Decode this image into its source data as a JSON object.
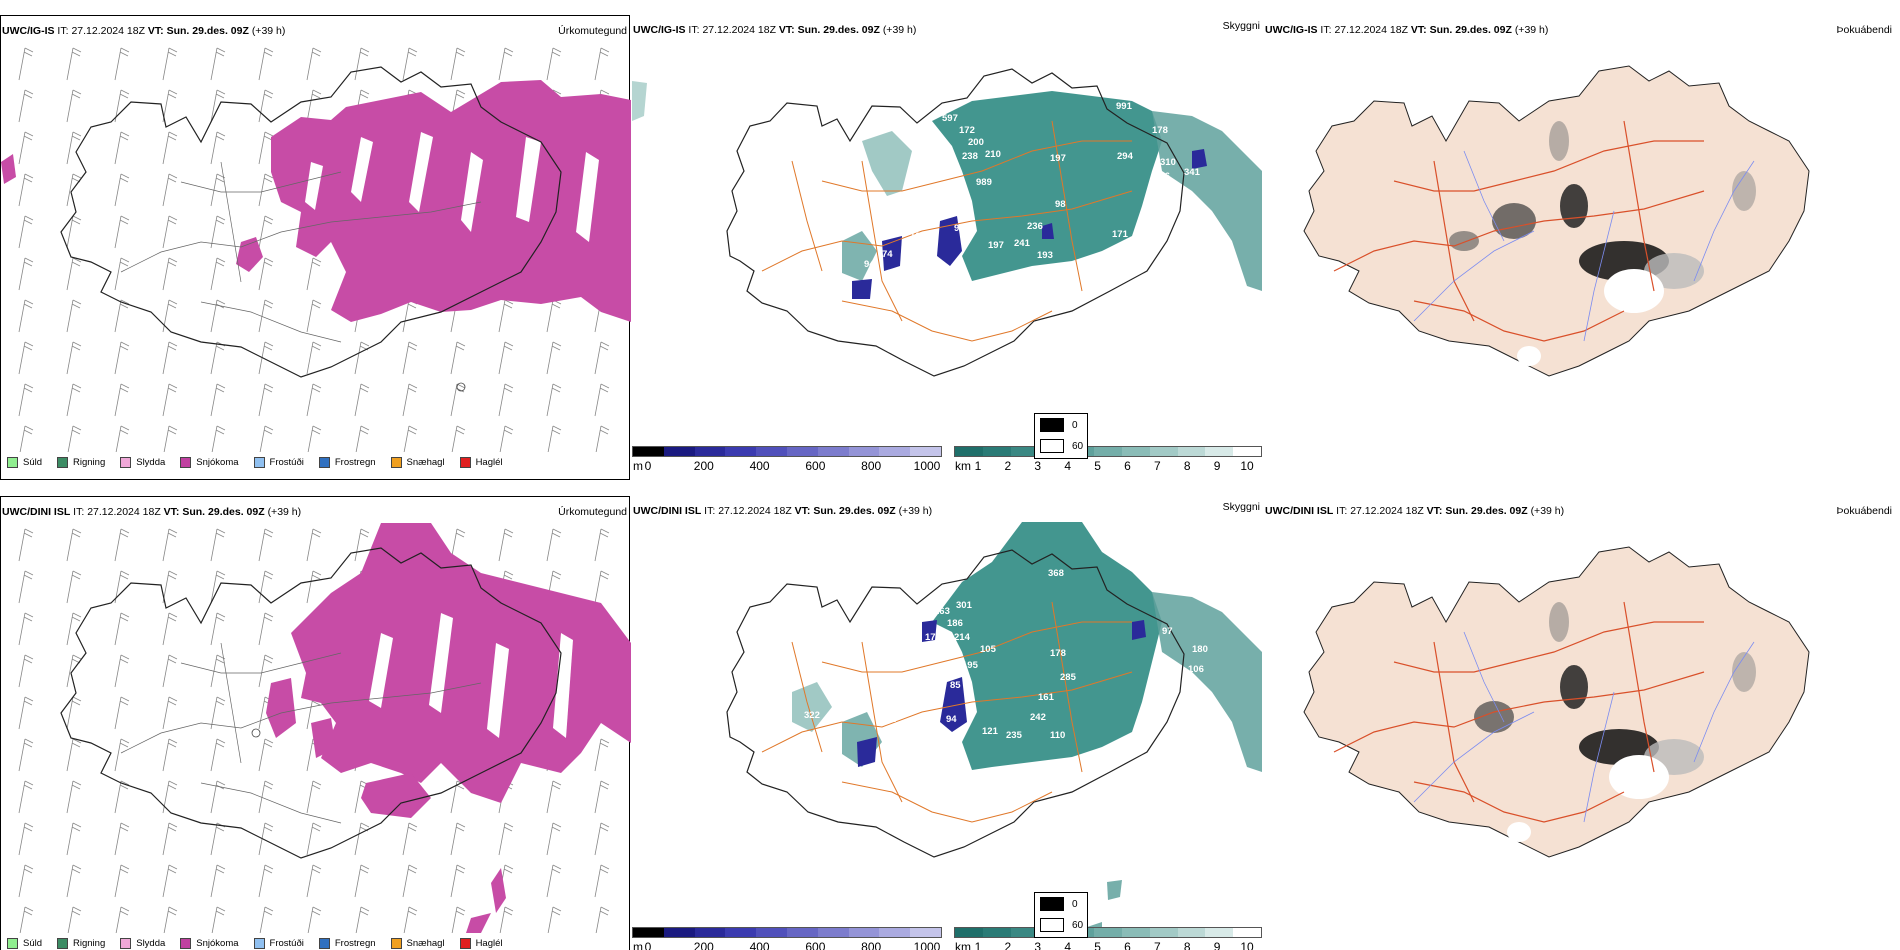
{
  "rows": [
    {
      "model": "UWC/IG-IS",
      "it_label": "IT:",
      "it": "27.12.2024 18Z",
      "vt_label": "VT:",
      "vt": "Sun. 29.des. 09Z",
      "lead": "(+39 h)",
      "titles": [
        "Úrkomutegund",
        "Skyggni",
        "Þokuábendi"
      ]
    },
    {
      "model": "UWC/DINI ISL",
      "it_label": "IT:",
      "it": "27.12.2024 18Z",
      "vt_label": "VT:",
      "vt": "Sun. 29.des. 09Z",
      "lead": "(+39 h)",
      "titles": [
        "Úrkomutegund",
        "Skyggni",
        "Þokuábendi"
      ]
    }
  ],
  "precip_legend": [
    {
      "label": "Súld",
      "color": "#90ee90"
    },
    {
      "label": "Rigning",
      "color": "#3c8c64"
    },
    {
      "label": "Slydda",
      "color": "#f0a8d8"
    },
    {
      "label": "Snjókoma",
      "color": "#c040a0"
    },
    {
      "label": "Frostúði",
      "color": "#90c0f0"
    },
    {
      "label": "Frostregn",
      "color": "#3070c0"
    },
    {
      "label": "Snæhagl",
      "color": "#f0a020"
    },
    {
      "label": "Haglél",
      "color": "#e02020"
    }
  ],
  "vis_scale_m": {
    "unit": "m",
    "ticks": [
      "0",
      "200",
      "400",
      "600",
      "800",
      "1000"
    ],
    "colors": [
      "#000000",
      "#1a1a80",
      "#2a2a9a",
      "#3b3bb0",
      "#5050bb",
      "#6666c4",
      "#7c7ccd",
      "#9494d7",
      "#aaaae0",
      "#c4c4ea"
    ]
  },
  "vis_scale_km": {
    "unit": "km",
    "ticks": [
      "1",
      "2",
      "3",
      "4",
      "5",
      "6",
      "7",
      "8",
      "9",
      "10"
    ],
    "colors": [
      "#1f6f6a",
      "#2a7b76",
      "#3a8883",
      "#4c948f",
      "#5fa19c",
      "#74aea9",
      "#8abcb7",
      "#a2cac6",
      "#bcd9d6",
      "#d8eae8",
      "#ffffff"
    ]
  },
  "fog_legend": [
    {
      "label": "0",
      "color": "#000000"
    },
    {
      "label": "60",
      "color": "#ffffff"
    }
  ],
  "vis_labels_top": [
    "597",
    "172",
    "200",
    "59",
    "238",
    "210",
    "28",
    "989",
    "197",
    "991",
    "178",
    "294",
    "310",
    "266",
    "341",
    "56",
    "98",
    "39",
    "102",
    "98",
    "236",
    "171",
    "197",
    "241",
    "193",
    "207",
    "74",
    "94"
  ],
  "vis_labels_bottom": [
    "368",
    "474",
    "263",
    "301",
    "186",
    "170",
    "214",
    "105",
    "178",
    "97",
    "180",
    "106",
    "285",
    "161",
    "242",
    "189",
    "121",
    "235",
    "110",
    "200",
    "322",
    "101",
    "90",
    "94",
    "85",
    "195"
  ],
  "colors": {
    "snow": "#c74ca6",
    "vis_teal": "#2f8b83",
    "vis_dark": "#2a2a9a",
    "roads": "#e0782a",
    "fog_land": "#f5e1d3",
    "fog_roads": "#d9502a",
    "fog_rivers": "#7c8cf0"
  }
}
